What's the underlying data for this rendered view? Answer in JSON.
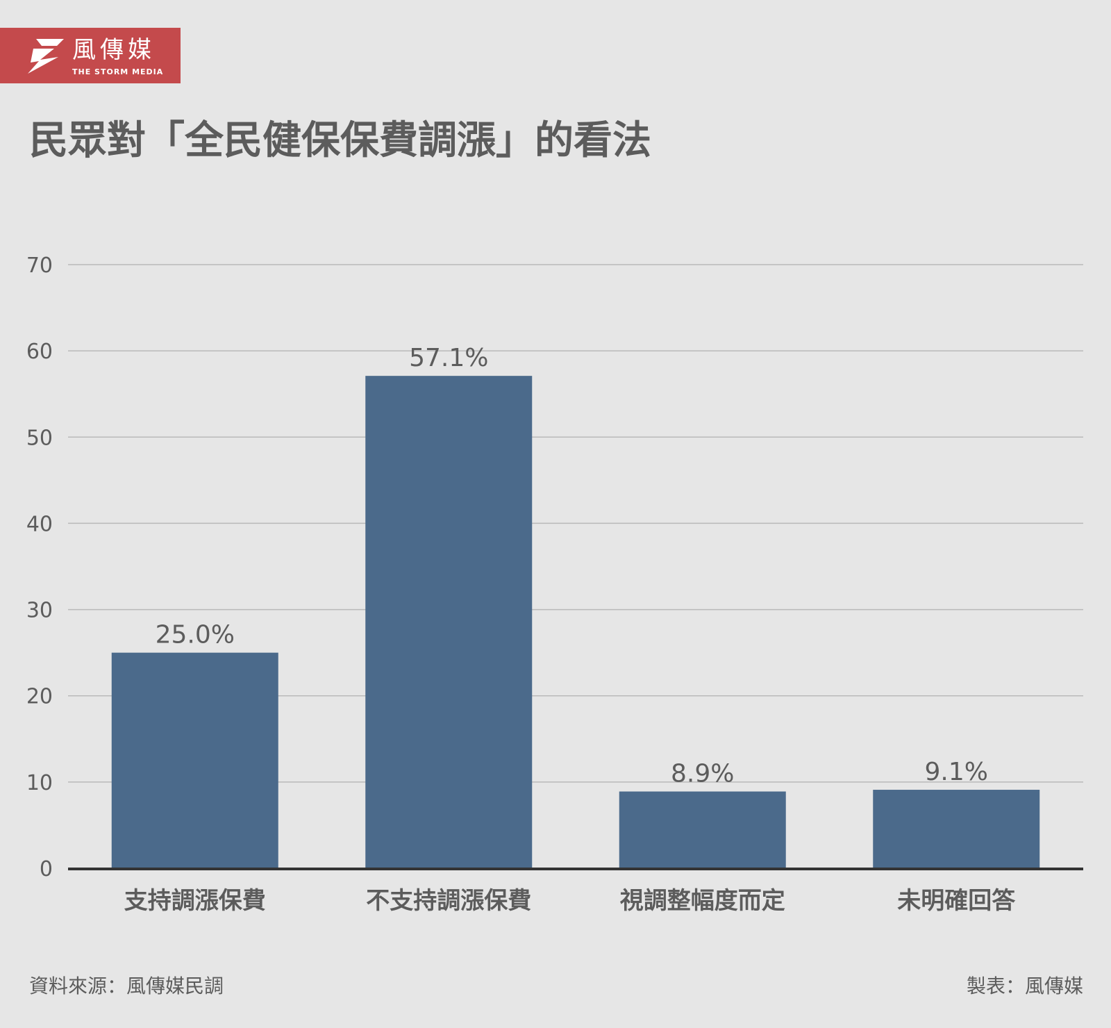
{
  "brand": {
    "name_cn": "風傳媒",
    "name_en": "THE STORM MEDIA",
    "color": "#c44a4c",
    "icon": "storm-logo-icon"
  },
  "chart_data": {
    "type": "bar",
    "title": "民眾對「全民健保保費調漲」的看法",
    "categories": [
      "支持調漲保費",
      "不支持調漲保費",
      "視調整幅度而定",
      "未明確回答"
    ],
    "values": [
      25.0,
      57.1,
      8.9,
      9.1
    ],
    "value_labels": [
      "25.0%",
      "57.1%",
      "8.9%",
      "9.1%"
    ],
    "y_ticks": [
      "0",
      "10",
      "20",
      "30",
      "40",
      "50",
      "60",
      "70"
    ],
    "ylim": [
      0,
      70
    ],
    "grid": true,
    "bar_color": "#4b6a8b",
    "xlabel": "",
    "ylabel": ""
  },
  "footer": {
    "source": "資料來源：風傳媒民調",
    "credit": "製表：風傳媒"
  }
}
